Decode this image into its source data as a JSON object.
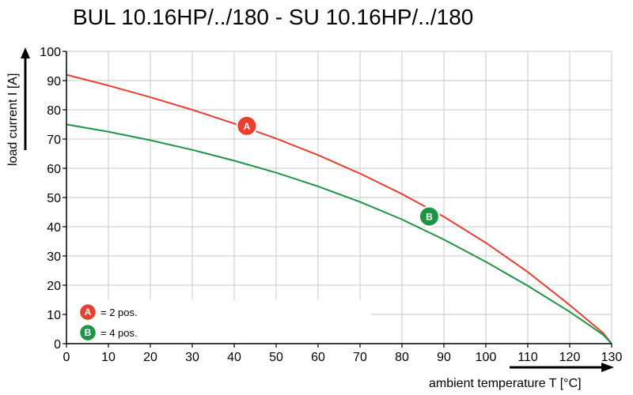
{
  "chart_data": {
    "type": "line",
    "title": "BUL 10.16HP/../180 - SU 10.16HP/../180",
    "xlabel": "ambient temperature T [°C]",
    "ylabel": "load current I [A]",
    "xlim": [
      0,
      130
    ],
    "ylim": [
      0,
      100
    ],
    "xticks": [
      0,
      10,
      20,
      30,
      40,
      50,
      60,
      70,
      80,
      90,
      100,
      110,
      120,
      130
    ],
    "yticks": [
      0,
      10,
      20,
      30,
      40,
      50,
      60,
      70,
      80,
      90,
      100
    ],
    "grid": true,
    "legend_position": "bottom-left",
    "series": [
      {
        "name": "A",
        "legend_label": "= 2 pos.",
        "color": "#e8402e",
        "marker_at": [
          43,
          74.5
        ],
        "x": [
          0,
          10,
          20,
          30,
          40,
          50,
          60,
          70,
          80,
          90,
          100,
          110,
          120,
          125,
          128,
          130
        ],
        "y": [
          92,
          88.3,
          84.3,
          80,
          75.3,
          70.2,
          64.5,
          58.2,
          51.2,
          43.4,
          34.5,
          24.5,
          13.2,
          7.2,
          3.6,
          0
        ]
      },
      {
        "name": "B",
        "legend_label": "= 4 pos.",
        "color": "#1e9446",
        "marker_at": [
          86.5,
          43.5
        ],
        "x": [
          0,
          10,
          20,
          30,
          40,
          50,
          60,
          70,
          80,
          90,
          100,
          110,
          120,
          125,
          128,
          130
        ],
        "y": [
          75,
          72.5,
          69.6,
          66.3,
          62.6,
          58.5,
          53.8,
          48.5,
          42.5,
          35.6,
          28,
          19.8,
          10.9,
          6,
          3,
          0
        ]
      }
    ]
  }
}
